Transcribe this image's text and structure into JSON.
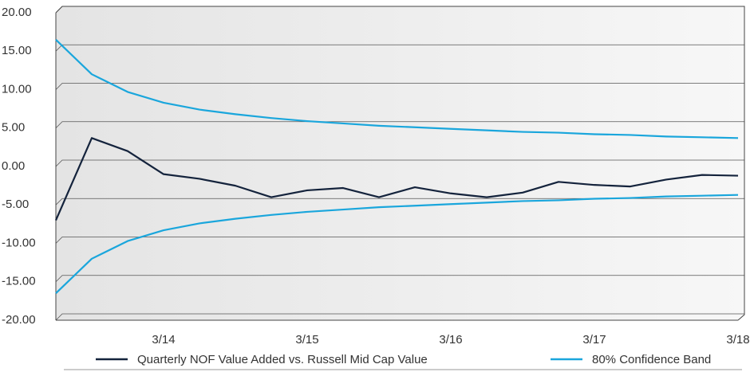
{
  "chart_data": {
    "type": "line",
    "categories": [
      null,
      null,
      null,
      "3/14",
      null,
      null,
      null,
      "3/15",
      null,
      null,
      null,
      "3/16",
      null,
      null,
      null,
      "3/17",
      null,
      null,
      null,
      "3/18"
    ],
    "series": [
      {
        "name": "Quarterly NOF Value Added vs. Russell Mid Cap Value",
        "color": "#14233c",
        "values": [
          -7,
          3.7,
          2,
          -1,
          -1.6,
          -2.5,
          -4,
          -3.1,
          -2.8,
          -4,
          -2.7,
          -3.5,
          -4,
          -3.4,
          -2,
          -2.4,
          -2.6,
          -1.7,
          -1.1,
          -1.2
        ]
      },
      {
        "name": "80% Confidence Band",
        "color": "#1aa6dc",
        "upper": [
          16.5,
          12,
          9.7,
          8.3,
          7.4,
          6.8,
          6.3,
          5.9,
          5.6,
          5.3,
          5.1,
          4.9,
          4.7,
          4.5,
          4.4,
          4.2,
          4.1,
          3.9,
          3.8,
          3.7
        ],
        "lower": [
          -16.5,
          -12,
          -9.7,
          -8.3,
          -7.4,
          -6.8,
          -6.3,
          -5.9,
          -5.6,
          -5.3,
          -5.1,
          -4.9,
          -4.7,
          -4.5,
          -4.4,
          -4.2,
          -4.1,
          -3.9,
          -3.8,
          -3.7
        ]
      }
    ],
    "ylim": [
      -20,
      20
    ],
    "yticks": [
      {
        "value": -20,
        "label": "-20.00"
      },
      {
        "value": -15,
        "label": "-15.00"
      },
      {
        "value": -10,
        "label": "-10.00"
      },
      {
        "value": -5,
        "label": "-5.00"
      },
      {
        "value": 0,
        "label": "0.00"
      },
      {
        "value": 5,
        "label": "5.00"
      },
      {
        "value": 10,
        "label": "10.00"
      },
      {
        "value": 15,
        "label": "15.00"
      },
      {
        "value": 20,
        "label": "20.00"
      }
    ],
    "grid": true
  }
}
